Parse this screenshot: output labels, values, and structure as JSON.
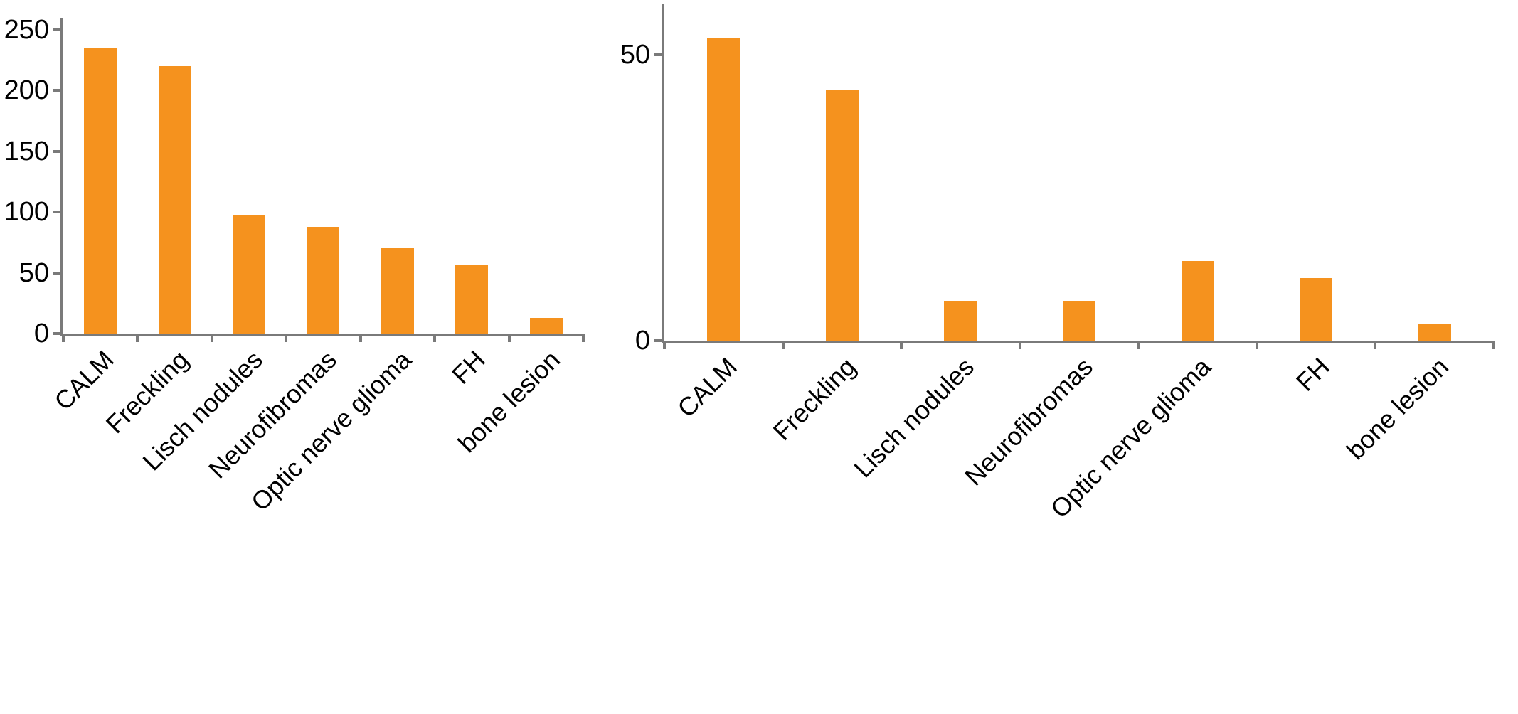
{
  "colors": {
    "bar": "#F5921E",
    "axis": "#7A7A7A",
    "text": "#000000"
  },
  "chart_data": [
    {
      "id": "left-panel",
      "type": "bar",
      "title": "",
      "xlabel": "",
      "ylabel": "",
      "categories": [
        "CALM",
        "Freckling",
        "Lisch nodules",
        "Neurofibromas",
        "Optic nerve glioma",
        "FH",
        "bone lesion"
      ],
      "values": [
        235,
        220,
        97,
        88,
        70,
        57,
        13
      ],
      "yticks": [
        0,
        50,
        100,
        150,
        200,
        250
      ],
      "ylim": [
        0,
        260
      ],
      "grid": false,
      "legend": false,
      "bar_color": "#F5921E",
      "x_label_rotation_deg": 45
    },
    {
      "id": "right-panel",
      "type": "bar",
      "title": "",
      "xlabel": "",
      "ylabel": "",
      "categories": [
        "CALM",
        "Freckling",
        "Lisch nodules",
        "Neurofibromas",
        "Optic nerve glioma",
        "FH",
        "bone lesion"
      ],
      "values": [
        53,
        44,
        7,
        7,
        14,
        11,
        3
      ],
      "yticks": [
        0,
        50
      ],
      "ylim": [
        0,
        59
      ],
      "grid": false,
      "legend": false,
      "bar_color": "#F5921E",
      "x_label_rotation_deg": 45
    }
  ]
}
